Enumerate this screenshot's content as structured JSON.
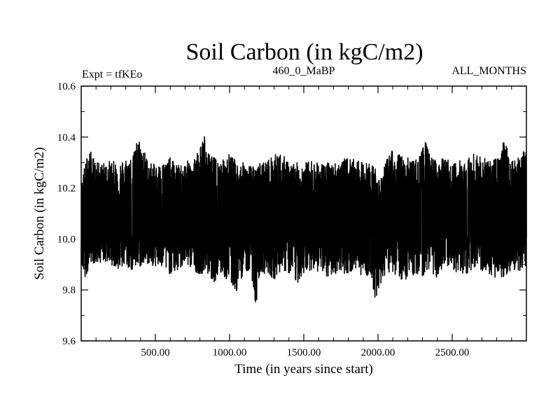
{
  "chart_data": {
    "type": "line",
    "title": "Soil Carbon (in kgC/m2)",
    "subtitle_left": "Expt = tfKEo",
    "subtitle_center": "460_0_MaBP",
    "subtitle_right": "ALL_MONTHS",
    "xlabel": "Time (in years since start)",
    "ylabel": "Soil Carbon (in kgC/m2)",
    "xlim": [
      0,
      3000
    ],
    "ylim": [
      9.6,
      10.6
    ],
    "x_ticks": [
      500,
      1000,
      1500,
      2000,
      2500
    ],
    "x_tick_labels": [
      "500.00",
      "1000.00",
      "1500.00",
      "2000.00",
      "2500.00"
    ],
    "y_ticks": [
      9.6,
      9.8,
      10.0,
      10.2,
      10.4,
      10.6
    ],
    "y_tick_labels": [
      "9.6",
      "9.8",
      "10.0",
      "10.2",
      "10.4",
      "10.6"
    ],
    "grid": false,
    "series": [
      {
        "line_color": "#000000",
        "x": [
          0,
          20,
          30,
          50,
          60,
          100,
          150,
          200,
          250,
          300,
          350,
          380,
          400,
          450,
          500,
          550,
          600,
          650,
          700,
          750,
          800,
          830,
          850,
          900,
          950,
          1000,
          1050,
          1100,
          1150,
          1180,
          1200,
          1250,
          1300,
          1350,
          1400,
          1450,
          1500,
          1550,
          1600,
          1650,
          1700,
          1750,
          1800,
          1850,
          1900,
          1950,
          1980,
          2000,
          2050,
          2100,
          2150,
          2200,
          2250,
          2300,
          2310,
          2350,
          2400,
          2450,
          2500,
          2550,
          2600,
          2650,
          2700,
          2750,
          2800,
          2850,
          2900,
          2950,
          3000
        ],
        "y_max": [
          10.22,
          10.28,
          10.3,
          10.36,
          10.35,
          10.3,
          10.3,
          10.31,
          10.3,
          10.32,
          10.33,
          10.4,
          10.39,
          10.31,
          10.29,
          10.3,
          10.32,
          10.29,
          10.3,
          10.32,
          10.36,
          10.41,
          10.34,
          10.32,
          10.31,
          10.34,
          10.3,
          10.3,
          10.29,
          10.27,
          10.3,
          10.31,
          10.33,
          10.34,
          10.3,
          10.3,
          10.3,
          10.31,
          10.3,
          10.3,
          10.3,
          10.31,
          10.32,
          10.31,
          10.3,
          10.3,
          10.29,
          10.22,
          10.3,
          10.36,
          10.33,
          10.32,
          10.31,
          10.35,
          10.4,
          10.33,
          10.31,
          10.32,
          10.3,
          10.31,
          10.32,
          10.34,
          10.32,
          10.31,
          10.32,
          10.39,
          10.32,
          10.33,
          10.35
        ],
        "y_min": [
          9.9,
          9.85,
          9.81,
          9.9,
          9.91,
          9.9,
          9.91,
          9.9,
          9.88,
          9.89,
          9.87,
          9.88,
          9.89,
          9.9,
          9.89,
          9.88,
          9.86,
          9.87,
          9.9,
          9.88,
          9.86,
          9.87,
          9.86,
          9.83,
          9.86,
          9.82,
          9.79,
          9.88,
          9.85,
          9.69,
          9.85,
          9.87,
          9.84,
          9.88,
          9.86,
          9.82,
          9.86,
          9.88,
          9.87,
          9.84,
          9.86,
          9.87,
          9.86,
          9.88,
          9.85,
          9.86,
          9.75,
          9.8,
          9.86,
          9.87,
          9.84,
          9.84,
          9.86,
          9.85,
          9.86,
          9.88,
          9.84,
          9.87,
          9.88,
          9.86,
          9.86,
          9.89,
          9.87,
          9.84,
          9.85,
          9.85,
          9.88,
          9.87,
          9.89
        ],
        "mean": 10.1
      }
    ]
  }
}
